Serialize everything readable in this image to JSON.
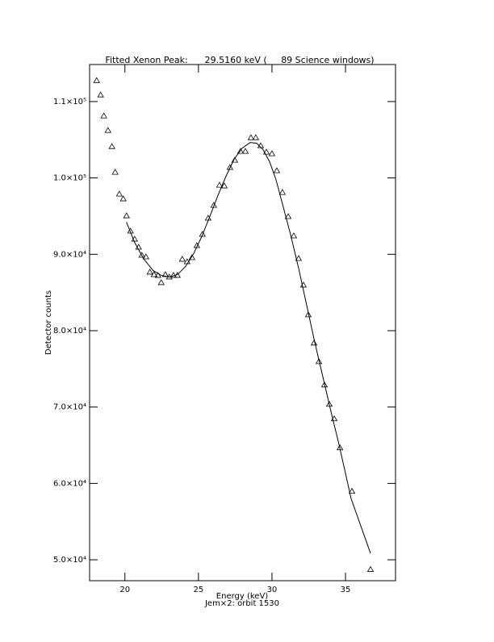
{
  "chart_data": {
    "type": "scatter",
    "title": "Fitted Xenon Peak:      29.5160 keV (     89 Science windows)",
    "x_label": "Energy (keV)",
    "subtitle": "Jem×2: orbit 1530",
    "y_label": "Detector counts",
    "xlim": [
      17.6,
      38.4
    ],
    "ylim": [
      47260,
      114850
    ],
    "xticks": [
      20,
      25,
      30,
      35
    ],
    "yticks": [
      {
        "value": 50000,
        "label": "5.0×10⁴"
      },
      {
        "value": 60000,
        "label": "6.0×10⁴"
      },
      {
        "value": 70000,
        "label": "7.0×10⁴"
      },
      {
        "value": 80000,
        "label": "8.0×10⁴"
      },
      {
        "value": 90000,
        "label": "9.0×10⁴"
      },
      {
        "value": 100000,
        "label": "1.0×10⁵"
      },
      {
        "value": 110000,
        "label": "1.1×10⁵"
      }
    ],
    "color": "#000000",
    "series": [
      {
        "style": "markers",
        "x": [
          18.08,
          18.35,
          18.57,
          18.85,
          19.12,
          19.34,
          19.62,
          19.89,
          20.11,
          20.38,
          20.66,
          20.93,
          21.15,
          21.43,
          21.7,
          21.98,
          22.25,
          22.47,
          22.75,
          23.02,
          23.3,
          23.57,
          23.9,
          24.23,
          24.56,
          24.89,
          25.27,
          25.66,
          26.04,
          26.43,
          26.76,
          27.14,
          27.47,
          27.86,
          28.19,
          28.57,
          28.9,
          29.23,
          29.62,
          30.0,
          30.33,
          30.71,
          31.1,
          31.48,
          31.81,
          32.14,
          32.47,
          32.86,
          33.19,
          33.57,
          33.9,
          34.23,
          34.62,
          35.44,
          36.7
        ],
        "values": [
          112760,
          110870,
          108120,
          106220,
          104110,
          100740,
          97890,
          97260,
          95040,
          93040,
          91980,
          90930,
          89870,
          89660,
          87660,
          87340,
          87240,
          86290,
          87340,
          87030,
          87240,
          87240,
          89350,
          89030,
          89560,
          91140,
          92620,
          94730,
          96410,
          99050,
          98950,
          101370,
          102320,
          103480,
          103480,
          105270,
          105270,
          104220,
          103380,
          103170,
          100950,
          98100,
          94940,
          92410,
          89450,
          85970,
          82070,
          78380,
          75950,
          72890,
          70360,
          68460,
          64660,
          58970,
          48730
        ]
      },
      {
        "style": "line",
        "x": [
          20.11,
          20.66,
          21.26,
          21.92,
          22.47,
          23.02,
          23.57,
          24.12,
          24.67,
          25.22,
          25.77,
          26.32,
          26.87,
          27.42,
          27.97,
          28.52,
          28.96,
          29.4,
          29.84,
          30.27,
          30.71,
          31.26,
          31.81,
          32.36,
          32.91,
          33.46,
          34.01,
          34.56,
          35.38,
          36.7
        ],
        "values": [
          94200,
          91560,
          89450,
          87870,
          87240,
          87030,
          87340,
          88400,
          90080,
          92300,
          94940,
          97680,
          100210,
          102430,
          103900,
          104640,
          104540,
          103690,
          102110,
          99790,
          96620,
          92620,
          88190,
          83330,
          78480,
          73950,
          69410,
          65080,
          58020,
          50840
        ]
      }
    ]
  }
}
